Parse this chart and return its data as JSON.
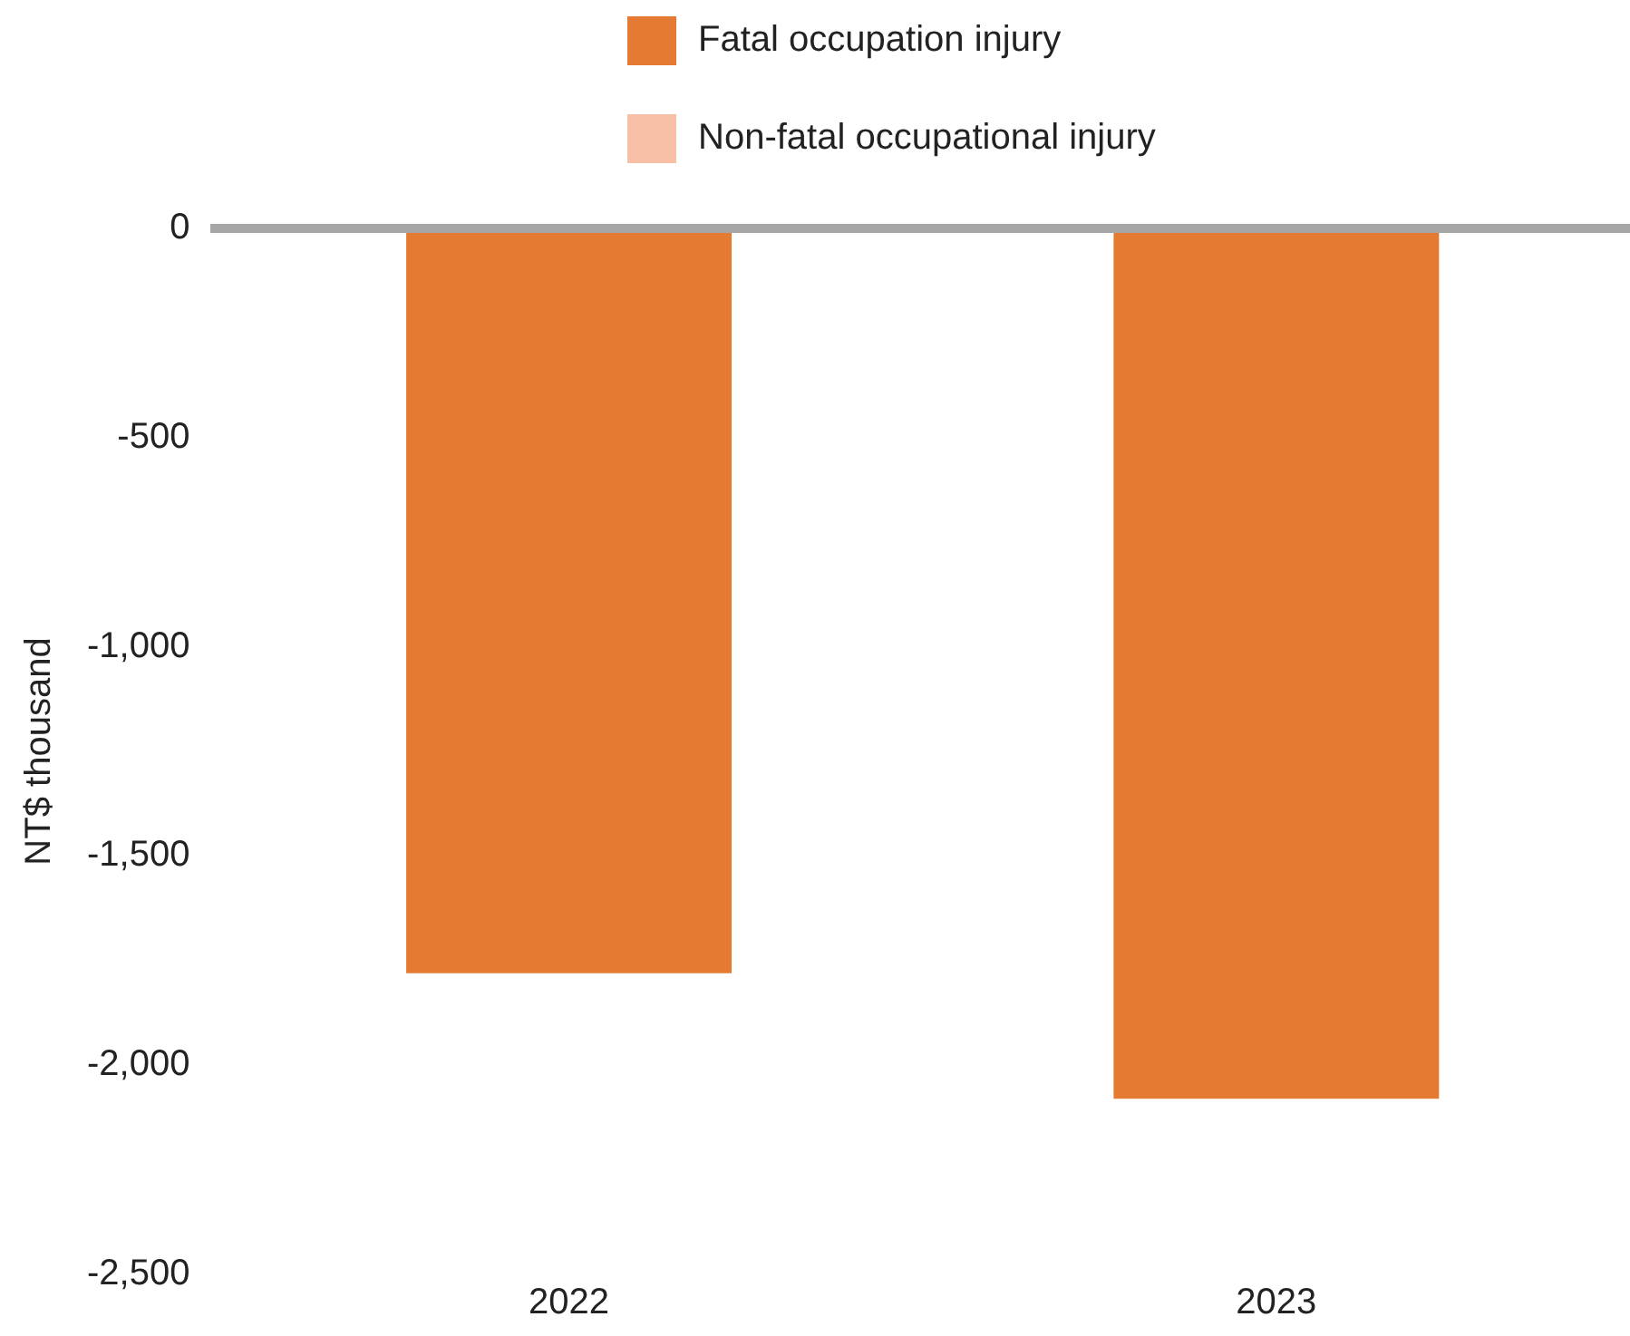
{
  "chart_data": {
    "type": "bar",
    "ylabel": "NT$ thousand",
    "categories": [
      "2022",
      "2023"
    ],
    "series": [
      {
        "name": "Fatal occupation injury",
        "color": "#e57b32",
        "values": [
          -1780,
          -2080
        ]
      },
      {
        "name": "Non-fatal occupational injury",
        "color": "#f6bfa6",
        "values": [
          null,
          null
        ]
      }
    ],
    "stacked": true,
    "ylim": [
      -2500,
      0
    ],
    "yticks": [
      {
        "value": 0,
        "label": "0"
      },
      {
        "value": -500,
        "label": "-500"
      },
      {
        "value": -1000,
        "label": "-1,000"
      },
      {
        "value": -1500,
        "label": "-1,500"
      },
      {
        "value": -2000,
        "label": "-2,000"
      },
      {
        "value": -2500,
        "label": "-2,500"
      }
    ],
    "grid": false,
    "legend": "top"
  }
}
